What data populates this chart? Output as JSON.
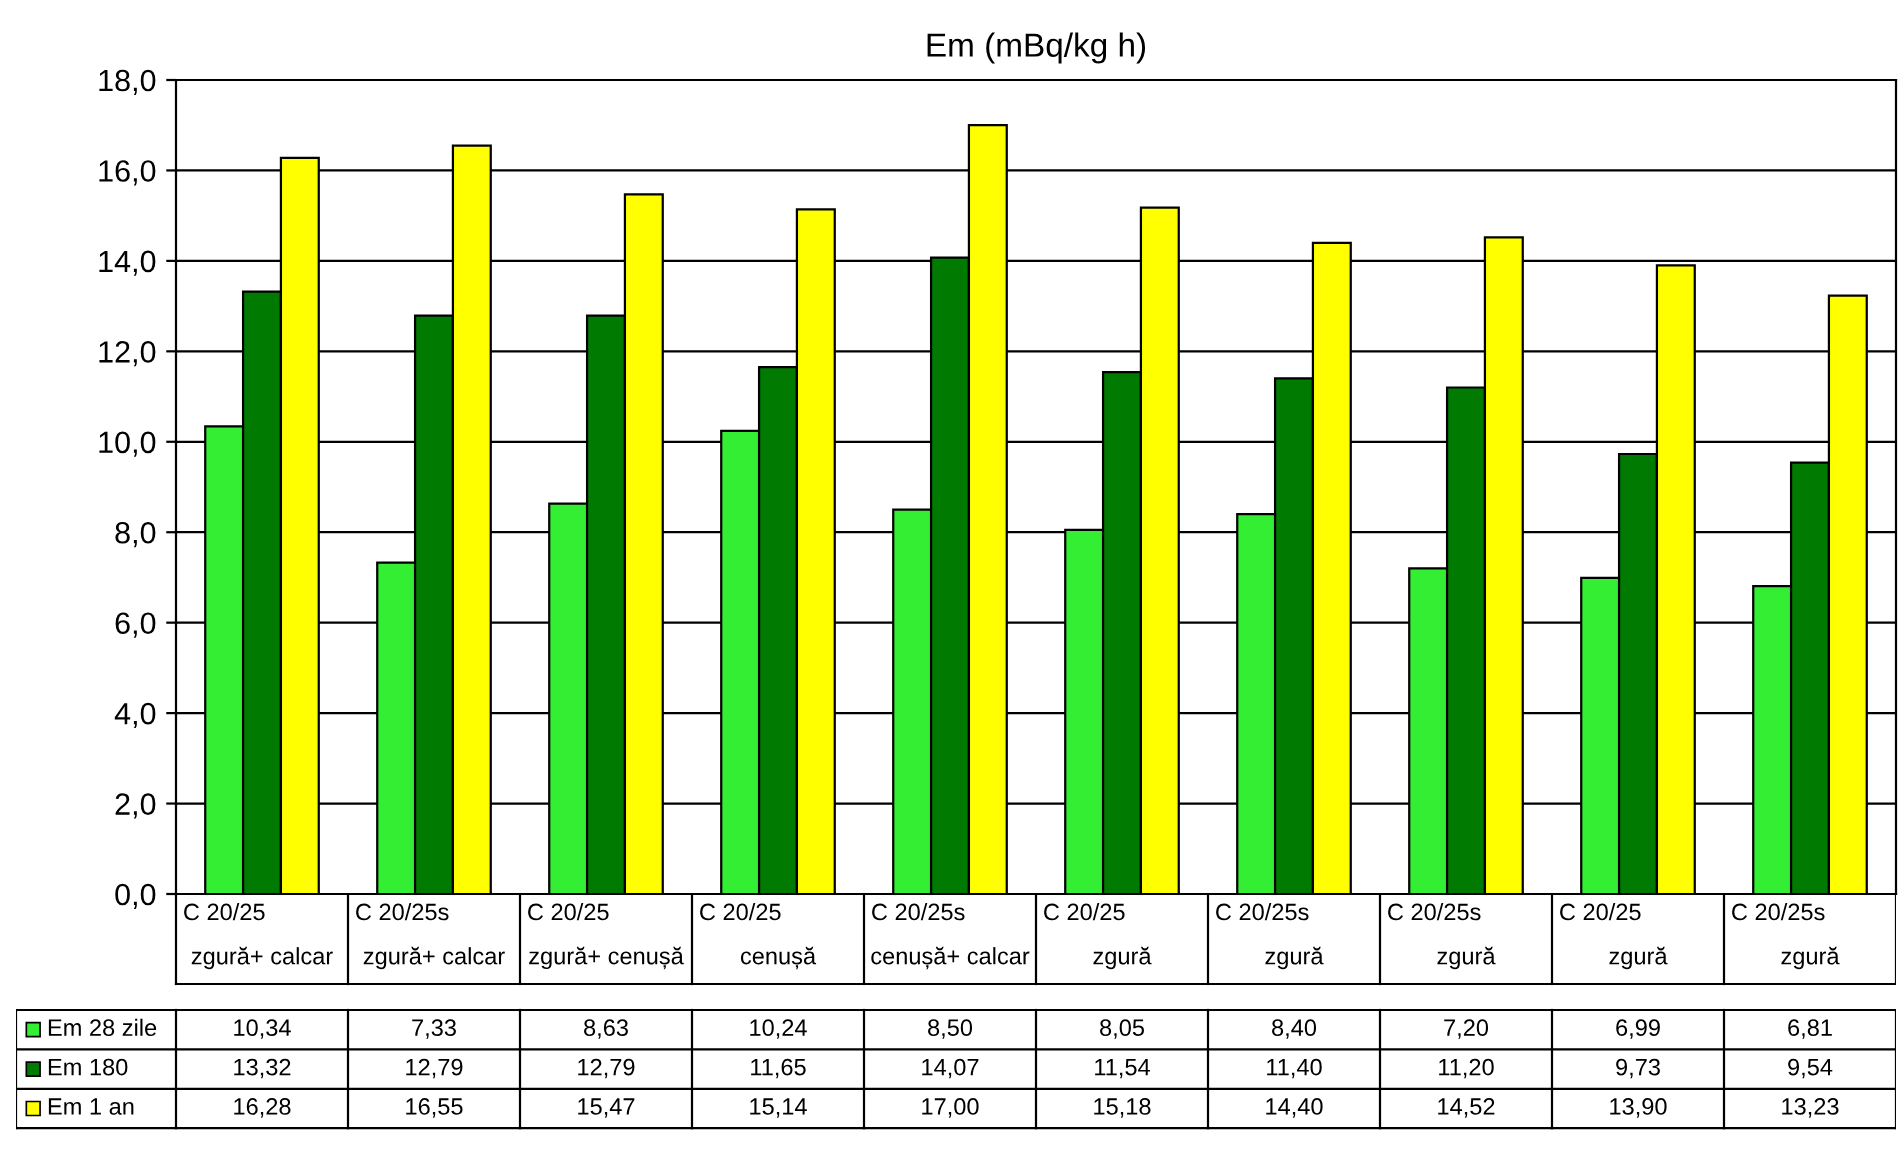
{
  "chart_data": {
    "type": "bar",
    "title": "Em (mBq/kg h)",
    "categories": [
      "C 20/25\nzgură+ calcar",
      "C 20/25s\nzgură+ calcar",
      "C 20/25\nzgură+ cenușă",
      "C 20/25\ncenușă",
      "C 20/25s\ncenușă+ calcar",
      "C 20/25\nzgură",
      "C 20/25s\nzgură",
      "C 20/25s\nzgură",
      "C 20/25\nzgură",
      "C 20/25s\nzgură"
    ],
    "series": [
      {
        "name": "Em 28 zile",
        "color": "#33ee33",
        "values": [
          10.34,
          7.33,
          8.63,
          10.24,
          8.5,
          8.05,
          8.4,
          7.2,
          6.99,
          6.81
        ],
        "value_labels": [
          "10,34",
          "7,33",
          "8,63",
          "10,24",
          "8,50",
          "8,05",
          "8,40",
          "7,20",
          "6,99",
          "6,81"
        ]
      },
      {
        "name": "Em 180",
        "color": "#007a00",
        "values": [
          13.32,
          12.79,
          12.79,
          11.65,
          14.07,
          11.54,
          11.4,
          11.2,
          9.73,
          9.54
        ],
        "value_labels": [
          "13,32",
          "12,79",
          "12,79",
          "11,65",
          "14,07",
          "11,54",
          "11,40",
          "11,20",
          "9,73",
          "9,54"
        ]
      },
      {
        "name": "Em 1 an",
        "color": "#ffff00",
        "values": [
          16.28,
          16.55,
          15.47,
          15.14,
          17.0,
          15.18,
          14.4,
          14.52,
          13.9,
          13.23
        ],
        "value_labels": [
          "16,28",
          "16,55",
          "15,47",
          "15,14",
          "17,00",
          "15,18",
          "14,40",
          "14,52",
          "13,90",
          "13,23"
        ]
      }
    ],
    "ylim": [
      0,
      18
    ],
    "yticks": [
      {
        "value": 0,
        "label": "0,0"
      },
      {
        "value": 2,
        "label": "2,0"
      },
      {
        "value": 4,
        "label": "4,0"
      },
      {
        "value": 6,
        "label": "6,0"
      },
      {
        "value": 8,
        "label": "8,0"
      },
      {
        "value": 10,
        "label": "10,0"
      },
      {
        "value": 12,
        "label": "12,0"
      },
      {
        "value": 14,
        "label": "14,0"
      },
      {
        "value": 16,
        "label": "16,0"
      },
      {
        "value": 18,
        "label": "18,0"
      }
    ],
    "grid": "y",
    "legend": "bottom left"
  }
}
